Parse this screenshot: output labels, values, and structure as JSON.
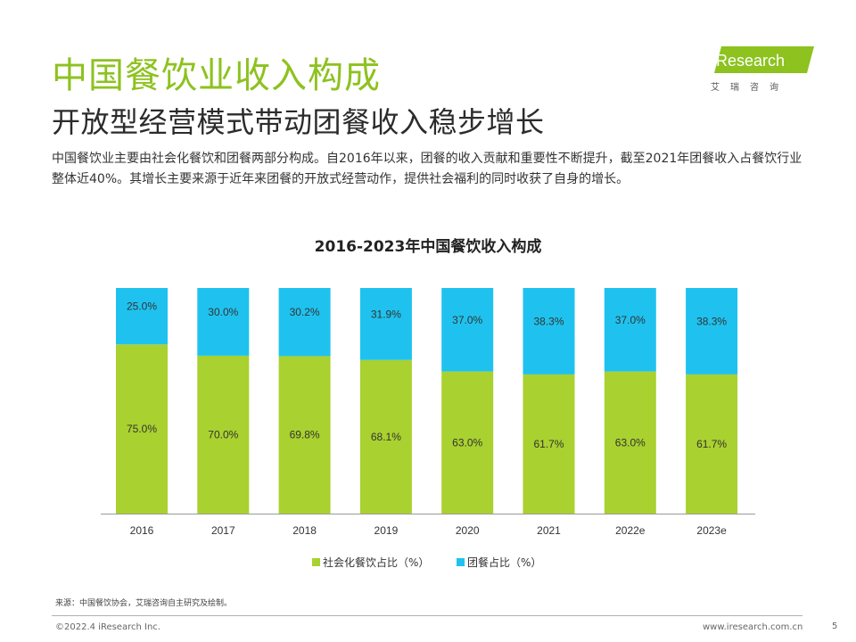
{
  "header": {
    "title": "中国餐饮业收入构成",
    "subtitle": "开放型经营模式带动团餐收入稳步增长",
    "description": "中国餐饮业主要由社会化餐饮和团餐两部分构成。自2016年以来，团餐的收入贡献和重要性不断提升，截至2021年团餐收入占餐饮行业整体近40%。其增长主要来源于近年来团餐的开放式经营动作，提供社会福利的同时收获了自身的增长。"
  },
  "logo": {
    "text": "iResearch",
    "sub": "艾瑞咨询"
  },
  "colors": {
    "accent": "#8dc21f",
    "series_social": "#a9d12f",
    "series_group": "#1fc2ee"
  },
  "chart_data": {
    "type": "bar",
    "stacked": true,
    "title": "2016-2023年中国餐饮收入构成",
    "categories": [
      "2016",
      "2017",
      "2018",
      "2019",
      "2020",
      "2021",
      "2022e",
      "2023e"
    ],
    "series": [
      {
        "name": "社会化餐饮占比（%）",
        "values": [
          75.0,
          70.0,
          69.8,
          68.1,
          63.0,
          61.7,
          63.0,
          61.7
        ],
        "color": "#a9d12f"
      },
      {
        "name": "团餐占比（%）",
        "values": [
          25.0,
          30.0,
          30.2,
          31.9,
          37.0,
          38.3,
          37.0,
          38.3
        ],
        "color": "#1fc2ee"
      }
    ],
    "ylim": [
      0,
      100
    ],
    "legend": "bottom-center",
    "grid": false
  },
  "footer": {
    "source": "来源：中国餐饮协会，艾瑞咨询自主研究及绘制。",
    "copyright": "©2022.4 iResearch Inc.",
    "site": "www.iresearch.com.cn",
    "page": "5"
  }
}
